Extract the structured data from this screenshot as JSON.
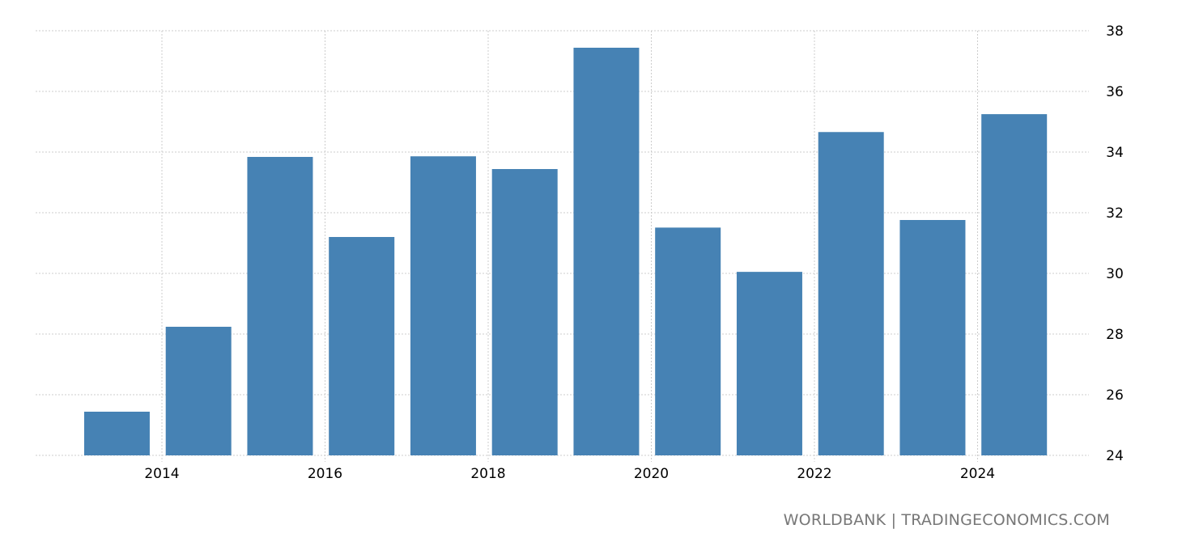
{
  "chart_data": {
    "type": "bar",
    "title": "",
    "xlabel": "",
    "ylabel": "",
    "categories": [
      "2013",
      "2014",
      "2015",
      "2016",
      "2017",
      "2018",
      "2019",
      "2020",
      "2021",
      "2022",
      "2023",
      "2024"
    ],
    "values": [
      25.44,
      28.24,
      33.84,
      31.2,
      33.86,
      33.44,
      37.44,
      31.51,
      30.05,
      34.66,
      31.76,
      35.25
    ],
    "ylim": [
      24,
      38
    ],
    "yticks": [
      "24",
      "26",
      "28",
      "30",
      "32",
      "34",
      "36",
      "38"
    ],
    "xticks": [
      "2014",
      "2016",
      "2018",
      "2020",
      "2022",
      "2024"
    ],
    "y_axis_side": "right",
    "grid": true,
    "bar_color": "#4682b4",
    "grid_color": "#cccccc"
  },
  "source": "WORLDBANK | TRADINGECONOMICS.COM"
}
